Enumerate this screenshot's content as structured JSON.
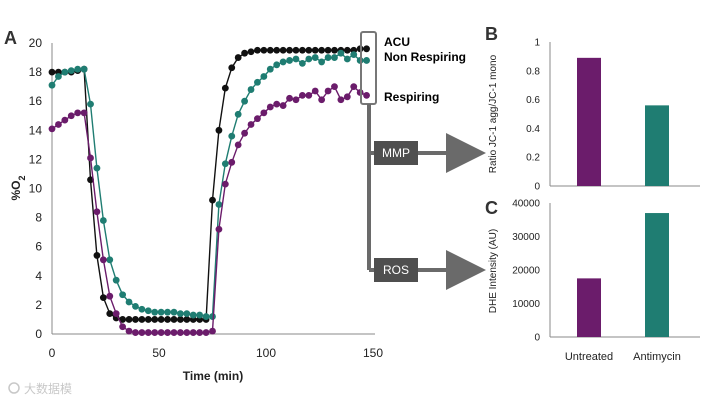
{
  "panels": {
    "a": "A",
    "b": "B",
    "c": "C"
  },
  "annotations": {
    "mmp": "MMP",
    "ros": "ROS"
  },
  "watermark": "大数据模",
  "colors": {
    "acu": "#111111",
    "non_respiring": "#1f7d72",
    "respiring": "#6b1c6b",
    "box": "#4f4f4f",
    "arrow": "#6a6a6a"
  },
  "chart_data": [
    {
      "id": "panel-a",
      "type": "line",
      "title": "",
      "xlabel": "Time (min)",
      "ylabel": "%O2",
      "ylabel_main": "%O",
      "ylabel_sub": "2",
      "xlim": [
        0,
        150
      ],
      "ylim": [
        0,
        20
      ],
      "xticks": [
        0,
        50,
        100,
        150
      ],
      "yticks": [
        0,
        2,
        4,
        6,
        8,
        10,
        12,
        14,
        16,
        18,
        20
      ],
      "series": [
        {
          "name": "ACU",
          "color": "#111111",
          "x": [
            0,
            3,
            6,
            9,
            12,
            15,
            18,
            21,
            24,
            27,
            30,
            33,
            36,
            39,
            42,
            45,
            48,
            51,
            54,
            57,
            60,
            63,
            66,
            69,
            72,
            75,
            78,
            81,
            84,
            87,
            90,
            93,
            96,
            99,
            102,
            105,
            108,
            111,
            114,
            117,
            120,
            123,
            126,
            129,
            132,
            135,
            138,
            141,
            144,
            147
          ],
          "y": [
            18,
            18,
            18,
            18,
            18.1,
            18.2,
            10.6,
            5.4,
            2.5,
            1.4,
            1.1,
            1,
            1,
            1,
            1,
            1,
            1,
            1,
            1,
            1,
            1,
            1,
            1,
            1,
            1,
            9.2,
            14,
            16.9,
            18.3,
            19,
            19.3,
            19.4,
            19.5,
            19.5,
            19.5,
            19.5,
            19.5,
            19.5,
            19.5,
            19.5,
            19.5,
            19.5,
            19.5,
            19.5,
            19.5,
            19.5,
            19.5,
            19.5,
            19.6,
            19.6
          ]
        },
        {
          "name": "Non Respiring",
          "color": "#1f7d72",
          "x": [
            0,
            3,
            6,
            9,
            12,
            15,
            18,
            21,
            24,
            27,
            30,
            33,
            36,
            39,
            42,
            45,
            48,
            51,
            54,
            57,
            60,
            63,
            66,
            69,
            72,
            75,
            78,
            81,
            84,
            87,
            90,
            93,
            96,
            99,
            102,
            105,
            108,
            111,
            114,
            117,
            120,
            123,
            126,
            129,
            132,
            135,
            138,
            141,
            144,
            147
          ],
          "y": [
            17.1,
            17.7,
            18,
            18.1,
            18.2,
            18.2,
            15.8,
            11.4,
            7.8,
            5.1,
            3.7,
            2.7,
            2.2,
            1.9,
            1.7,
            1.6,
            1.5,
            1.5,
            1.5,
            1.5,
            1.4,
            1.4,
            1.3,
            1.3,
            1.2,
            1.2,
            8.9,
            11.7,
            13.6,
            15.1,
            16,
            16.8,
            17.3,
            17.7,
            18.2,
            18.5,
            18.7,
            18.8,
            18.9,
            18.6,
            18.9,
            19,
            18.7,
            19,
            19,
            19.3,
            18.9,
            19.2,
            18.8,
            18.8
          ]
        },
        {
          "name": "Respiring",
          "color": "#6b1c6b",
          "x": [
            0,
            3,
            6,
            9,
            12,
            15,
            18,
            21,
            24,
            27,
            30,
            33,
            36,
            39,
            42,
            45,
            48,
            51,
            54,
            57,
            60,
            63,
            66,
            69,
            72,
            75,
            78,
            81,
            84,
            87,
            90,
            93,
            96,
            99,
            102,
            105,
            108,
            111,
            114,
            117,
            120,
            123,
            126,
            129,
            132,
            135,
            138,
            141,
            144,
            147
          ],
          "y": [
            14.1,
            14.4,
            14.7,
            15,
            15.2,
            15.2,
            12.1,
            8.4,
            5.1,
            2.6,
            1.4,
            0.5,
            0.2,
            0.1,
            0.1,
            0.1,
            0.1,
            0.1,
            0.1,
            0.1,
            0.1,
            0.1,
            0.1,
            0.1,
            0.1,
            0.2,
            7.2,
            10.3,
            11.8,
            13,
            13.8,
            14.4,
            14.8,
            15.2,
            15.6,
            15.8,
            15.7,
            16.2,
            16.1,
            16.4,
            16.4,
            16.7,
            16.1,
            16.7,
            17,
            16.1,
            16.3,
            17,
            16.6,
            16.4
          ]
        }
      ],
      "legend": [
        {
          "label": "ACU",
          "color": "#111111"
        },
        {
          "label": "Non Respiring",
          "color": "#1f7d72"
        },
        {
          "label": "Respiring",
          "color": "#6b1c6b"
        }
      ]
    },
    {
      "id": "panel-b",
      "type": "bar",
      "title": "",
      "ylabel": "Ratio JC-1 agg/JC-1 mono",
      "ylim": [
        0,
        1
      ],
      "yticks": [
        "0",
        "0.2",
        "0.4",
        "0.6",
        "0.8",
        "1"
      ],
      "ytick_values": [
        0,
        0.2,
        0.4,
        0.6,
        0.8,
        1
      ],
      "categories": [
        "Untreated",
        "Antimycin"
      ],
      "values": [
        0.89,
        0.56
      ],
      "colors": [
        "#6b1c6b",
        "#1f7d72"
      ]
    },
    {
      "id": "panel-c",
      "type": "bar",
      "title": "",
      "ylabel": "DHE Intensity (AU)",
      "xlabel_categories": [
        "Untreated",
        "Antimycin"
      ],
      "ylim": [
        0,
        40000
      ],
      "yticks": [
        "0",
        "10000",
        "20000",
        "30000",
        "40000"
      ],
      "ytick_values": [
        0,
        10000,
        20000,
        30000,
        40000
      ],
      "categories": [
        "Untreated",
        "Antimycin"
      ],
      "values": [
        17500,
        37000
      ],
      "colors": [
        "#6b1c6b",
        "#1f7d72"
      ]
    }
  ]
}
